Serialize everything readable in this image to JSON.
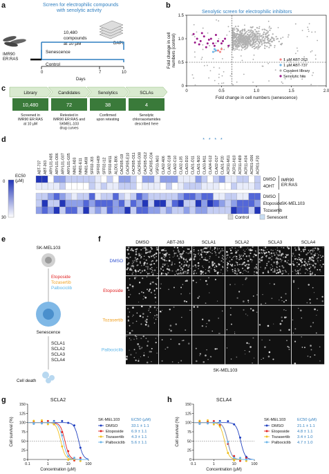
{
  "panel_a": {
    "label": "a",
    "title_line1": "Screen for electrophilic compounds",
    "title_line2": "with senolytic activity",
    "compounds_line1": "10,480",
    "compounds_line2": "compounds",
    "compounds_line3": "at 10 µM",
    "dapi": "DAPI",
    "cell_line1": "IMR90",
    "cell_line2": "ER:RAS",
    "senescence": "Senescence",
    "control": "Control",
    "ticks": [
      "0",
      "7",
      "10"
    ],
    "xlabel": "Days"
  },
  "panel_b": {
    "label": "b",
    "chart_data": {
      "type": "scatter",
      "title": "Senolytic screen for electrophilic inhibitors",
      "xlabel": "Fold change in cell numbers (senescence)",
      "ylabel": "Fold change in cell\nnumbers (control)",
      "xlim": [
        0,
        2.0
      ],
      "ylim": [
        0,
        1.5
      ],
      "x_ticks": [
        "0",
        "0.5",
        "1.0",
        "1.5",
        "2.0"
      ],
      "y_ticks": [
        "0",
        "0.5",
        "1.0",
        "1.5"
      ],
      "legend": [
        "1 µM ABT-263",
        "1 µM ABT-737",
        "Covalent library",
        "Senolytic hits"
      ],
      "legend_colors": [
        "#f08080",
        "#6ab4e8",
        "#aaaaaa",
        "#9b1a8a"
      ],
      "threshold_x": 0.65,
      "threshold_y": 0.5,
      "series": [
        {
          "name": "1 µM ABT-263",
          "x": [
            0.45,
            0.5,
            0.48
          ],
          "y": [
            0.75,
            0.78,
            0.72
          ]
        },
        {
          "name": "1 µM ABT-737",
          "x": [
            0.38,
            0.42,
            0.4
          ],
          "y": [
            0.72,
            0.75,
            0.78
          ]
        },
        {
          "name": "Senolytic hits",
          "x": [
            0.1,
            0.15,
            0.2,
            0.25,
            0.3,
            0.35,
            0.4,
            0.45,
            0.5,
            0.55,
            0.6,
            0.12,
            0.22,
            0.32,
            0.42,
            0.52,
            0.28,
            0.38,
            0.18
          ],
          "y": [
            1.1,
            1.0,
            0.95,
            1.05,
            0.9,
            1.0,
            0.85,
            0.95,
            0.9,
            1.0,
            0.85,
            0.92,
            1.12,
            0.98,
            1.08,
            0.95,
            0.82,
            0.9,
            0.88
          ]
        }
      ]
    }
  },
  "panel_c": {
    "label": "c",
    "steps": [
      {
        "title": "Library",
        "value": "10,480",
        "desc": "Screened in\nIMR90 ER:RAS\nat 10 µM"
      },
      {
        "title": "Candidates",
        "value": "72",
        "desc": "Retested in\nIMR90 ER:RAS and\nSKMEL-103\ndrug curves"
      },
      {
        "title": "Senolytics",
        "value": "38",
        "desc": "Confirmed\nupon retesting"
      },
      {
        "title": "SCLAs",
        "value": "4",
        "desc": "Senolytic\nchloroacetamides\ndescribed here"
      }
    ]
  },
  "panel_d": {
    "label": "d",
    "compounds": [
      "ABT-737",
      "ABT-263",
      "ARYL01-N05",
      "ARYL01-O06",
      "ARYL01-G07",
      "ARYL01-G05",
      "NN01-N03",
      "NN01-E11",
      "NN01-M08",
      "SFF02-J03",
      "SFF02-H09",
      "SFF02-I12",
      "SFF02-M11",
      "ALD01-B06",
      "CACR05-I19",
      "CACR05-E10",
      "CACR05-O11",
      "CACR05-G08",
      "CACR05-O12",
      "CACR05-C04",
      "VSF03-N03",
      "CLA02-A06",
      "CLA02-G18",
      "CLA02-C10",
      "CLA02-L05",
      "CLA03-D10",
      "CLA01-O11",
      "CLA01-N10",
      "CLA03-M11",
      "CLA04-G12",
      "CLA02-O17",
      "CLA01-P20",
      "ACR11-M11",
      "ACR11-N10",
      "ACR11-N09",
      "ACR11-K04",
      "ACR01-O06",
      "ACR01-F20"
    ],
    "starred": [
      28,
      29,
      30,
      31
    ],
    "rows_imr": [
      "DMSO",
      "4OHT"
    ],
    "rows_sk": [
      "DMSO",
      "Etoposide",
      "Tozasertib"
    ],
    "group_imr": "IMR90\nER:RAS",
    "group_sk": "SK-MEL103",
    "colorbar_title": "EC50\n(µM)",
    "colorbar_ticks": [
      "0",
      "30"
    ],
    "legend_control": "Control",
    "legend_senescent": "Senescent"
  },
  "panel_e": {
    "label": "e",
    "cell": "SK-MEL103",
    "drugs": [
      "Etoposide",
      "Tozasertib",
      "Palbociclib"
    ],
    "drug_colors": [
      "#e02020",
      "#f0a020",
      "#5ab4e8"
    ],
    "senescence": "Senescence",
    "sclas": [
      "SCLA1",
      "SCLA2",
      "SCLA3",
      "SCLA4"
    ],
    "death": "Cell death"
  },
  "panel_f": {
    "label": "f",
    "columns": [
      "DMSO",
      "ABT-263",
      "SCLA1",
      "SCLA2",
      "SCLA3",
      "SCLA4"
    ],
    "rows": [
      "DMSO",
      "Etoposide",
      "Tozasertib",
      "Palbociclib"
    ],
    "row_colors": [
      "#3050d0",
      "#e02020",
      "#f0a020",
      "#5ab4e8"
    ],
    "caption": "SK-MEL103"
  },
  "panel_g": {
    "label": "g",
    "chart_data": {
      "type": "line",
      "title": "SCLA2",
      "xlabel": "Concentration (µM)",
      "ylabel": "Cell survival (%)",
      "x_ticks": [
        "0.1",
        "1",
        "10",
        "100"
      ],
      "y_ticks": [
        "0",
        "25",
        "50",
        "75",
        "100",
        "125",
        "150"
      ],
      "ylim": [
        0,
        150
      ],
      "legend_title": "SK-MEL103",
      "legend_ec50": "EC50 (µM)",
      "series": [
        {
          "name": "DMSO",
          "color": "#2040c0",
          "ec50": "33.1 ± 1.1"
        },
        {
          "name": "Etoposide",
          "color": "#e02020",
          "ec50": "6.9 ± 1.1"
        },
        {
          "name": "Tozasertib",
          "color": "#f0c020",
          "ec50": "4.3 ± 1.1"
        },
        {
          "name": "Palbociclib",
          "color": "#6ab4e8",
          "ec50": "5.6 ± 1.1"
        }
      ]
    }
  },
  "panel_h": {
    "label": "h",
    "chart_data": {
      "type": "line",
      "title": "SCLA4",
      "xlabel": "Concentration (µM)",
      "ylabel": "Cell survival (%)",
      "x_ticks": [
        "0.1",
        "1",
        "10",
        "100"
      ],
      "y_ticks": [
        "0",
        "25",
        "50",
        "75",
        "100",
        "125",
        "150"
      ],
      "ylim": [
        0,
        150
      ],
      "legend_title": "SK-MEL103",
      "legend_ec50": "EC50 (µM)",
      "series": [
        {
          "name": "DMSO",
          "color": "#2040c0",
          "ec50": "21.1 ± 1.1"
        },
        {
          "name": "Etoposide",
          "color": "#e02020",
          "ec50": "4.8 ± 1.1"
        },
        {
          "name": "Tozasertib",
          "color": "#f0c020",
          "ec50": "3.4 ± 1.0"
        },
        {
          "name": "Palbociclib",
          "color": "#6ab4e8",
          "ec50": "4.7 ± 1.0"
        }
      ]
    }
  }
}
